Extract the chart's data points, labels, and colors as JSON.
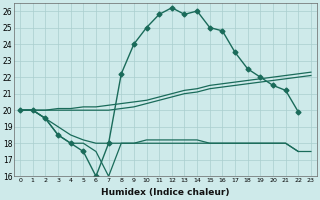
{
  "xlabel": "Humidex (Indice chaleur)",
  "bg_color": "#ceeaea",
  "grid_color": "#aacece",
  "line_color": "#1a6b5a",
  "xlim": [
    -0.5,
    23.5
  ],
  "ylim": [
    16,
    26.5
  ],
  "xticks": [
    0,
    1,
    2,
    3,
    4,
    5,
    6,
    7,
    8,
    9,
    10,
    11,
    12,
    13,
    14,
    15,
    16,
    17,
    18,
    19,
    20,
    21,
    22,
    23
  ],
  "yticks": [
    16,
    17,
    18,
    19,
    20,
    21,
    22,
    23,
    24,
    25,
    26
  ],
  "series": [
    {
      "x": [
        0,
        1,
        2,
        3,
        4,
        5,
        6,
        7,
        8,
        9,
        10,
        11,
        12,
        13,
        14,
        15,
        16,
        17,
        18,
        19,
        20,
        21,
        22
      ],
      "y": [
        20.0,
        20.0,
        19.5,
        18.5,
        18.0,
        17.5,
        16.0,
        18.0,
        22.2,
        24.0,
        25.0,
        25.8,
        26.2,
        25.8,
        26.0,
        25.0,
        24.8,
        23.5,
        22.5,
        22.0,
        21.5,
        21.2,
        19.9
      ],
      "marker": "D",
      "markersize": 2.5,
      "linewidth": 1.0
    },
    {
      "x": [
        0,
        1,
        2,
        3,
        4,
        5,
        6,
        7,
        8,
        9,
        10,
        11,
        12,
        13,
        14,
        15,
        16,
        17,
        18,
        19,
        20,
        21,
        22,
        23
      ],
      "y": [
        20.0,
        20.0,
        20.0,
        20.1,
        20.1,
        20.2,
        20.2,
        20.3,
        20.4,
        20.5,
        20.6,
        20.8,
        21.0,
        21.2,
        21.3,
        21.5,
        21.6,
        21.7,
        21.8,
        21.9,
        22.0,
        22.1,
        22.2,
        22.3
      ],
      "marker": null,
      "markersize": 0,
      "linewidth": 0.9
    },
    {
      "x": [
        0,
        1,
        2,
        3,
        4,
        5,
        6,
        7,
        8,
        9,
        10,
        11,
        12,
        13,
        14,
        15,
        16,
        17,
        18,
        19,
        20,
        21,
        22,
        23
      ],
      "y": [
        20.0,
        20.0,
        20.0,
        20.0,
        20.0,
        20.0,
        20.0,
        20.0,
        20.1,
        20.2,
        20.4,
        20.6,
        20.8,
        21.0,
        21.1,
        21.3,
        21.4,
        21.5,
        21.6,
        21.7,
        21.8,
        21.9,
        22.0,
        22.1
      ],
      "marker": null,
      "markersize": 0,
      "linewidth": 0.9
    },
    {
      "x": [
        0,
        1,
        2,
        3,
        4,
        5,
        6,
        7,
        8,
        9,
        10,
        11,
        12,
        13,
        14,
        15,
        16,
        17,
        18,
        19,
        20,
        21,
        22,
        23
      ],
      "y": [
        20.0,
        20.0,
        19.5,
        19.0,
        18.5,
        18.2,
        18.0,
        18.0,
        18.0,
        18.0,
        18.0,
        18.0,
        18.0,
        18.0,
        18.0,
        18.0,
        18.0,
        18.0,
        18.0,
        18.0,
        18.0,
        18.0,
        17.5,
        17.5
      ],
      "marker": null,
      "markersize": 0,
      "linewidth": 0.9
    },
    {
      "x": [
        0,
        1,
        2,
        3,
        4,
        5,
        6,
        7,
        8,
        9,
        10,
        11,
        12,
        13,
        14,
        15,
        16,
        17,
        18,
        19,
        20,
        21,
        22
      ],
      "y": [
        20.0,
        20.0,
        19.5,
        18.5,
        18.0,
        18.0,
        17.5,
        16.0,
        18.0,
        18.0,
        18.2,
        18.2,
        18.2,
        18.2,
        18.2,
        18.0,
        18.0,
        18.0,
        18.0,
        18.0,
        18.0,
        18.0,
        17.5
      ],
      "marker": null,
      "markersize": 0,
      "linewidth": 0.9
    }
  ]
}
